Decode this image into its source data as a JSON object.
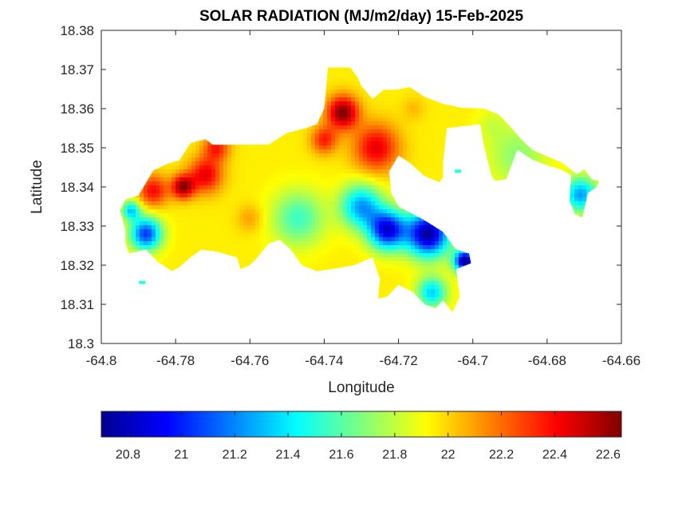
{
  "chart_data": {
    "type": "heatmap",
    "title": "SOLAR RADIATION (MJ/m2/day) 15-Feb-2025",
    "xlabel": "Longitude",
    "ylabel": "Latitude",
    "xlim": [
      -64.8,
      -64.66
    ],
    "ylim": [
      18.3,
      18.38
    ],
    "xticks": [
      -64.8,
      -64.78,
      -64.76,
      -64.74,
      -64.72,
      -64.7,
      -64.68,
      -64.66
    ],
    "xtick_labels": [
      "-64.8",
      "-64.78",
      "-64.76",
      "-64.74",
      "-64.72",
      "-64.7",
      "-64.68",
      "-64.66"
    ],
    "yticks": [
      18.3,
      18.31,
      18.32,
      18.33,
      18.34,
      18.35,
      18.36,
      18.37,
      18.38
    ],
    "ytick_labels": [
      "18.3",
      "18.31",
      "18.32",
      "18.33",
      "18.34",
      "18.35",
      "18.36",
      "18.37",
      "18.38"
    ],
    "colormap": "jet",
    "colorbar": {
      "orientation": "horizontal",
      "location": "bottom",
      "range": [
        20.7,
        22.65
      ],
      "ticks": [
        20.8,
        21,
        21.2,
        21.4,
        21.6,
        21.8,
        22,
        22.2,
        22.4,
        22.6
      ],
      "tick_labels": [
        "20.8",
        "21",
        "21.2",
        "21.4",
        "21.6",
        "21.8",
        "22",
        "22.2",
        "22.4",
        "22.6"
      ]
    },
    "colors": {
      "low": "#00008f",
      "mid": "#00ffff",
      "high": "#800000"
    },
    "land_mask": [
      [
        -64.7935,
        18.3368
      ],
      [
        -64.79,
        18.3378
      ],
      [
        -64.786,
        18.3442
      ],
      [
        -64.782,
        18.346
      ],
      [
        -64.779,
        18.3468
      ],
      [
        -64.776,
        18.3512
      ],
      [
        -64.772,
        18.3522
      ],
      [
        -64.77,
        18.3508
      ],
      [
        -64.755,
        18.3508
      ],
      [
        -64.75,
        18.3538
      ],
      [
        -64.745,
        18.355
      ],
      [
        -64.742,
        18.356
      ],
      [
        -64.74,
        18.36
      ],
      [
        -64.739,
        18.3705
      ],
      [
        -64.733,
        18.3705
      ],
      [
        -64.731,
        18.368
      ],
      [
        -64.73,
        18.3658
      ],
      [
        -64.727,
        18.3625
      ],
      [
        -64.724,
        18.3648
      ],
      [
        -64.721,
        18.3648
      ],
      [
        -64.717,
        18.3655
      ],
      [
        -64.713,
        18.363
      ],
      [
        -64.708,
        18.3612
      ],
      [
        -64.703,
        18.3602
      ],
      [
        -64.697,
        18.36
      ],
      [
        -64.693,
        18.3585
      ],
      [
        -64.69,
        18.3555
      ],
      [
        -64.687,
        18.3522
      ],
      [
        -64.684,
        18.3495
      ],
      [
        -64.68,
        18.3478
      ],
      [
        -64.676,
        18.3462
      ],
      [
        -64.672,
        18.3432
      ],
      [
        -64.67,
        18.3445
      ],
      [
        -64.668,
        18.342
      ],
      [
        -64.666,
        18.3415
      ],
      [
        -64.6668,
        18.3398
      ],
      [
        -64.669,
        18.3385
      ],
      [
        -64.6705,
        18.3322
      ],
      [
        -64.6725,
        18.333
      ],
      [
        -64.674,
        18.3365
      ],
      [
        -64.6735,
        18.343
      ],
      [
        -64.6765,
        18.3445
      ],
      [
        -64.68,
        18.3455
      ],
      [
        -64.684,
        18.347
      ],
      [
        -64.688,
        18.3495
      ],
      [
        -64.691,
        18.342
      ],
      [
        -64.694,
        18.3415
      ],
      [
        -64.695,
        18.343
      ],
      [
        -64.697,
        18.3505
      ],
      [
        -64.698,
        18.356
      ],
      [
        -64.703,
        18.3555
      ],
      [
        -64.707,
        18.355
      ],
      [
        -64.708,
        18.3465
      ],
      [
        -64.708,
        18.3425
      ],
      [
        -64.709,
        18.3412
      ],
      [
        -64.713,
        18.3428
      ],
      [
        -64.717,
        18.3462
      ],
      [
        -64.72,
        18.348
      ],
      [
        -64.7225,
        18.344
      ],
      [
        -64.722,
        18.3385
      ],
      [
        -64.72,
        18.335
      ],
      [
        -64.713,
        18.3315
      ],
      [
        -64.708,
        18.3285
      ],
      [
        -64.7045,
        18.324
      ],
      [
        -64.701,
        18.323
      ],
      [
        -64.7005,
        18.3205
      ],
      [
        -64.7045,
        18.319
      ],
      [
        -64.7035,
        18.312
      ],
      [
        -64.7055,
        18.308
      ],
      [
        -64.708,
        18.311
      ],
      [
        -64.71,
        18.309
      ],
      [
        -64.713,
        18.31
      ],
      [
        -64.716,
        18.313
      ],
      [
        -64.72,
        18.315
      ],
      [
        -64.723,
        18.312
      ],
      [
        -64.7255,
        18.3115
      ],
      [
        -64.725,
        18.3165
      ],
      [
        -64.727,
        18.322
      ],
      [
        -64.732,
        18.32
      ],
      [
        -64.738,
        18.319
      ],
      [
        -64.742,
        18.3185
      ],
      [
        -64.746,
        18.32
      ],
      [
        -64.749,
        18.324
      ],
      [
        -64.752,
        18.3265
      ],
      [
        -64.755,
        18.3255
      ],
      [
        -64.758,
        18.322
      ],
      [
        -64.76,
        18.32
      ],
      [
        -64.7625,
        18.319
      ],
      [
        -64.7635,
        18.322
      ],
      [
        -64.769,
        18.3235
      ],
      [
        -64.773,
        18.324
      ],
      [
        -64.776,
        18.322
      ],
      [
        -64.779,
        18.3195
      ],
      [
        -64.781,
        18.3185
      ],
      [
        -64.785,
        18.321
      ],
      [
        -64.788,
        18.324
      ],
      [
        -64.7925,
        18.323
      ],
      [
        -64.7935,
        18.3255
      ],
      [
        -64.7935,
        18.329
      ],
      [
        -64.795,
        18.334
      ]
    ],
    "value_field": {
      "background": 21.95,
      "anomalies": [
        {
          "lon": -64.735,
          "lat": 18.359,
          "value": 22.65,
          "radius": 0.0042
        },
        {
          "lon": -64.726,
          "lat": 18.35,
          "value": 22.45,
          "radius": 0.006
        },
        {
          "lon": -64.74,
          "lat": 18.352,
          "value": 22.35,
          "radius": 0.0035
        },
        {
          "lon": -64.778,
          "lat": 18.34,
          "value": 22.6,
          "radius": 0.003
        },
        {
          "lon": -64.772,
          "lat": 18.343,
          "value": 22.45,
          "radius": 0.0045
        },
        {
          "lon": -64.786,
          "lat": 18.339,
          "value": 22.4,
          "radius": 0.004
        },
        {
          "lon": -64.769,
          "lat": 18.35,
          "value": 22.35,
          "radius": 0.0035
        },
        {
          "lon": -64.76,
          "lat": 18.332,
          "value": 22.1,
          "radius": 0.0035
        },
        {
          "lon": -64.716,
          "lat": 18.36,
          "value": 22.05,
          "radius": 0.003
        },
        {
          "lon": -64.712,
          "lat": 18.328,
          "value": 20.75,
          "radius": 0.0058
        },
        {
          "lon": -64.702,
          "lat": 18.321,
          "value": 20.72,
          "radius": 0.003
        },
        {
          "lon": -64.723,
          "lat": 18.329,
          "value": 20.9,
          "radius": 0.005
        },
        {
          "lon": -64.73,
          "lat": 18.335,
          "value": 21.25,
          "radius": 0.0055
        },
        {
          "lon": -64.747,
          "lat": 18.332,
          "value": 21.55,
          "radius": 0.007
        },
        {
          "lon": -64.711,
          "lat": 18.313,
          "value": 21.35,
          "radius": 0.004
        },
        {
          "lon": -64.788,
          "lat": 18.328,
          "value": 21.05,
          "radius": 0.0042
        },
        {
          "lon": -64.792,
          "lat": 18.334,
          "value": 21.35,
          "radius": 0.0025
        },
        {
          "lon": -64.671,
          "lat": 18.338,
          "value": 21.25,
          "radius": 0.0045
        },
        {
          "lon": -64.688,
          "lat": 18.348,
          "value": 21.7,
          "radius": 0.008
        },
        {
          "lon": -64.695,
          "lat": 18.356,
          "value": 21.85,
          "radius": 0.004
        }
      ]
    },
    "islets": [
      {
        "lon": -64.789,
        "lat": 18.3156,
        "value": 21.5
      },
      {
        "lon": -64.704,
        "lat": 18.344,
        "value": 21.5
      }
    ]
  }
}
